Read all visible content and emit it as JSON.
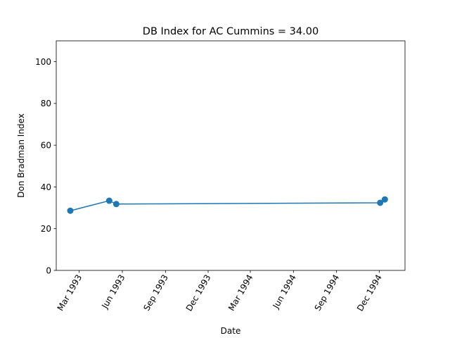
{
  "chart_data": {
    "type": "line",
    "title": "DB Index for AC Cummins = 34.00",
    "xlabel": "Date",
    "ylabel": "Don Bradman Index",
    "ylim": [
      0,
      110
    ],
    "xlim": [
      "1993-01-11",
      "1995-01-25"
    ],
    "y_ticks": [
      0,
      20,
      40,
      60,
      80,
      100
    ],
    "x_ticks": [
      {
        "date": "1993-03-01",
        "label": "Mar 1993"
      },
      {
        "date": "1993-06-01",
        "label": "Jun 1993"
      },
      {
        "date": "1993-09-01",
        "label": "Sep 1993"
      },
      {
        "date": "1993-12-01",
        "label": "Dec 1993"
      },
      {
        "date": "1994-03-01",
        "label": "Mar 1994"
      },
      {
        "date": "1994-06-01",
        "label": "Jun 1994"
      },
      {
        "date": "1994-09-01",
        "label": "Sep 1994"
      },
      {
        "date": "1994-12-01",
        "label": "Dec 1994"
      }
    ],
    "grid": false,
    "series": [
      {
        "color": "#1f77b4",
        "points": [
          {
            "x": "1993-02-10",
            "y": 28.6
          },
          {
            "x": "1993-05-04",
            "y": 33.4
          },
          {
            "x": "1993-05-19",
            "y": 31.8
          },
          {
            "x": "1994-12-03",
            "y": 32.4
          },
          {
            "x": "1994-12-13",
            "y": 34.0
          }
        ]
      }
    ]
  }
}
